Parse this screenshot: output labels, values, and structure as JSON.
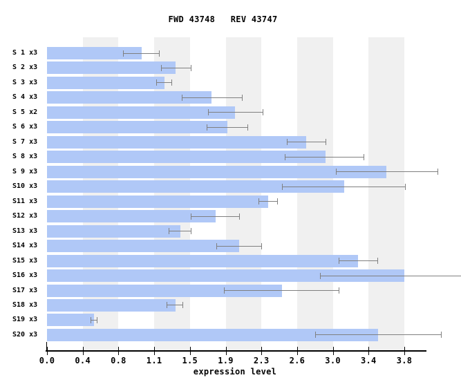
{
  "title": "FWD 43748   REV 43747",
  "chart_data": {
    "type": "bar",
    "orientation": "horizontal",
    "title": "FWD 43748   REV 43747",
    "xlabel": "expression level",
    "ylabel": "",
    "x_tick_labels": [
      "0.0",
      "0.4",
      "0.8",
      "1.1",
      "1.5",
      "1.9",
      "2.3",
      "2.6",
      "3.0",
      "3.4",
      "3.8"
    ],
    "xlim": [
      0,
      4.04
    ],
    "grid": "alternating vertical bands",
    "legend_position": "none",
    "categories": [
      "S 1 x3",
      "S 2 x3",
      "S 3 x3",
      "S 4 x3",
      "S 5 x2",
      "S 6 x3",
      "S 7 x3",
      "S 8 x3",
      "S 9 x3",
      "S10 x3",
      "S11 x3",
      "S12 x3",
      "S13 x3",
      "S14 x3",
      "S15 x3",
      "S16 x3",
      "S17 x3",
      "S18 x3",
      "S19 x3",
      "S20 x3"
    ],
    "values": [
      1.01,
      1.37,
      1.25,
      1.75,
      2.0,
      1.92,
      2.76,
      2.96,
      3.61,
      3.16,
      2.35,
      1.79,
      1.42,
      2.04,
      3.31,
      3.8,
      2.5,
      1.37,
      0.5,
      3.52
    ],
    "error_low": [
      0.81,
      1.21,
      1.16,
      1.43,
      1.71,
      1.7,
      2.55,
      2.53,
      3.07,
      2.5,
      2.25,
      1.53,
      1.29,
      1.8,
      3.1,
      2.9,
      1.88,
      1.27,
      0.46,
      2.85
    ],
    "error_high": [
      1.19,
      1.53,
      1.32,
      2.07,
      2.29,
      2.13,
      2.96,
      3.37,
      4.15,
      3.81,
      2.45,
      2.04,
      1.53,
      2.28,
      3.51,
      4.45,
      3.1,
      1.44,
      0.53,
      4.19
    ],
    "colors": {
      "bar": "#b0c8f7",
      "error_bar": "#7f7f7f",
      "stripe": "#f0f0f0",
      "axis": "#000000",
      "background": "#ffffff"
    }
  }
}
